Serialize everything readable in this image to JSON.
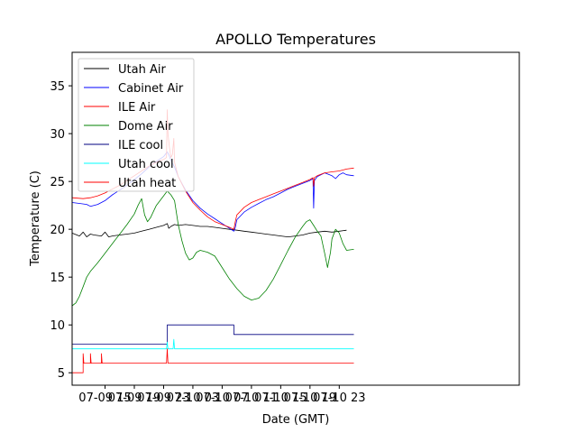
{
  "chart_data": {
    "type": "line",
    "title": "APOLLO Temperatures",
    "xlabel": "Date (GMT)",
    "ylabel": "Temperature (C)",
    "xlim": [
      10.5,
      71.6
    ],
    "ylim": [
      3.7,
      38.5
    ],
    "grid": false,
    "legend_position": "top-left",
    "x_unit_note": "hours since 07-09 00:00 GMT",
    "x_ticks": [
      {
        "value": 15,
        "label": "07-09 15"
      },
      {
        "value": 19,
        "label": "07-09 19"
      },
      {
        "value": 23,
        "label": "07-09 23"
      },
      {
        "value": 27,
        "label": "07-10 03"
      },
      {
        "value": 31,
        "label": "07-10 07"
      },
      {
        "value": 35,
        "label": "07-10 11"
      },
      {
        "value": 39,
        "label": "07-10 15"
      },
      {
        "value": 43,
        "label": "07-10 19"
      },
      {
        "value": 47,
        "label": "07-10 23"
      }
    ],
    "y_ticks": [
      {
        "value": 5,
        "label": "5"
      },
      {
        "value": 10,
        "label": "10"
      },
      {
        "value": 15,
        "label": "15"
      },
      {
        "value": 20,
        "label": "20"
      },
      {
        "value": 25,
        "label": "25"
      },
      {
        "value": 30,
        "label": "30"
      },
      {
        "value": 35,
        "label": "35"
      }
    ],
    "series": [
      {
        "name": "Utah Air",
        "color": "#000000",
        "points": [
          [
            10.5,
            19.6
          ],
          [
            11.5,
            19.3
          ],
          [
            12,
            19.7
          ],
          [
            12.5,
            19.2
          ],
          [
            13,
            19.5
          ],
          [
            13.5,
            19.4
          ],
          [
            14.5,
            19.3
          ],
          [
            15,
            19.7
          ],
          [
            15.5,
            19.2
          ],
          [
            16,
            19.3
          ],
          [
            17,
            19.4
          ],
          [
            18,
            19.5
          ],
          [
            19,
            19.6
          ],
          [
            20,
            19.8
          ],
          [
            21,
            20
          ],
          [
            22,
            20.2
          ],
          [
            23,
            20.4
          ],
          [
            23.5,
            20.6
          ],
          [
            23.7,
            20.1
          ],
          [
            24,
            20.3
          ],
          [
            24.5,
            20.5
          ],
          [
            25,
            20.4
          ],
          [
            26,
            20.5
          ],
          [
            27,
            20.4
          ],
          [
            28,
            20.3
          ],
          [
            29,
            20.3
          ],
          [
            30,
            20.2
          ],
          [
            31,
            20.1
          ],
          [
            32,
            20
          ],
          [
            33,
            19.9
          ],
          [
            34,
            19.8
          ],
          [
            35,
            19.7
          ],
          [
            36,
            19.6
          ],
          [
            37,
            19.5
          ],
          [
            38,
            19.4
          ],
          [
            39,
            19.3
          ],
          [
            40,
            19.2
          ],
          [
            41,
            19.3
          ],
          [
            42,
            19.4
          ],
          [
            43,
            19.6
          ],
          [
            44,
            19.7
          ],
          [
            45,
            19.8
          ],
          [
            46,
            19.7
          ],
          [
            47,
            19.8
          ],
          [
            48,
            19.9
          ]
        ]
      },
      {
        "name": "Cabinet Air",
        "color": "#0000ff",
        "points": [
          [
            10.5,
            22.8
          ],
          [
            11.5,
            22.7
          ],
          [
            12.5,
            22.6
          ],
          [
            13,
            22.4
          ],
          [
            14,
            22.6
          ],
          [
            15,
            23
          ],
          [
            16,
            23.6
          ],
          [
            17,
            24.1
          ],
          [
            18,
            24.6
          ],
          [
            19,
            25.2
          ],
          [
            20,
            25.8
          ],
          [
            21,
            26.5
          ],
          [
            22,
            27.1
          ],
          [
            23,
            27.6
          ],
          [
            23.5,
            28.1
          ],
          [
            23.7,
            27.8
          ],
          [
            24,
            27.2
          ],
          [
            24.5,
            26.5
          ],
          [
            25,
            25.5
          ],
          [
            26,
            24.1
          ],
          [
            27,
            23
          ],
          [
            28,
            22.2
          ],
          [
            29,
            21.6
          ],
          [
            30,
            21.1
          ],
          [
            31,
            20.6
          ],
          [
            32,
            20.1
          ],
          [
            32.6,
            19.8
          ],
          [
            32.8,
            20.2
          ],
          [
            33,
            21
          ],
          [
            34,
            21.8
          ],
          [
            35,
            22.3
          ],
          [
            36,
            22.7
          ],
          [
            37,
            23.1
          ],
          [
            38,
            23.4
          ],
          [
            39,
            23.8
          ],
          [
            40,
            24.2
          ],
          [
            41,
            24.5
          ],
          [
            42,
            24.8
          ],
          [
            43,
            25.1
          ],
          [
            43.4,
            25.3
          ],
          [
            43.5,
            22.2
          ],
          [
            43.6,
            25.1
          ],
          [
            44,
            25.5
          ],
          [
            45,
            25.9
          ],
          [
            46,
            25.6
          ],
          [
            46.5,
            25.3
          ],
          [
            47,
            25.7
          ],
          [
            47.5,
            25.9
          ],
          [
            48,
            25.7
          ],
          [
            49,
            25.6
          ]
        ]
      },
      {
        "name": "ILE Air",
        "color": "#ff0000",
        "points": [
          [
            10.5,
            23.3
          ],
          [
            12,
            23.2
          ],
          [
            13,
            23.3
          ],
          [
            14,
            23.5
          ],
          [
            15,
            23.8
          ],
          [
            16,
            24.2
          ],
          [
            17,
            24.6
          ],
          [
            18,
            25.1
          ],
          [
            19,
            25.6
          ],
          [
            20,
            26.1
          ],
          [
            21,
            26.6
          ],
          [
            22,
            27
          ],
          [
            23,
            27.3
          ],
          [
            23.4,
            27.5
          ],
          [
            23.5,
            32.5
          ],
          [
            23.6,
            30
          ],
          [
            23.8,
            28.5
          ],
          [
            24,
            27.5
          ],
          [
            24.2,
            27.8
          ],
          [
            24.4,
            29.5
          ],
          [
            24.5,
            27
          ],
          [
            25,
            25.5
          ],
          [
            26,
            24
          ],
          [
            27,
            22.8
          ],
          [
            28,
            22
          ],
          [
            29,
            21.3
          ],
          [
            30,
            20.8
          ],
          [
            31,
            20.5
          ],
          [
            32,
            20.2
          ],
          [
            32.6,
            20
          ],
          [
            32.8,
            20.8
          ],
          [
            33,
            21.5
          ],
          [
            34,
            22.3
          ],
          [
            35,
            22.8
          ],
          [
            36,
            23.1
          ],
          [
            37,
            23.4
          ],
          [
            38,
            23.7
          ],
          [
            39,
            24
          ],
          [
            40,
            24.3
          ],
          [
            41,
            24.6
          ],
          [
            42,
            24.9
          ],
          [
            43,
            25.2
          ],
          [
            43.4,
            25.4
          ],
          [
            43.5,
            24.5
          ],
          [
            43.6,
            25.4
          ],
          [
            44,
            25.6
          ],
          [
            45,
            25.9
          ],
          [
            46,
            26
          ],
          [
            47,
            26.1
          ],
          [
            48,
            26.3
          ],
          [
            49,
            26.4
          ]
        ]
      },
      {
        "name": "Dome Air",
        "color": "#008000",
        "points": [
          [
            10.5,
            12
          ],
          [
            11,
            12.3
          ],
          [
            11.5,
            13
          ],
          [
            12,
            14
          ],
          [
            12.5,
            15
          ],
          [
            13,
            15.6
          ],
          [
            14,
            16.5
          ],
          [
            15,
            17.5
          ],
          [
            16,
            18.5
          ],
          [
            17,
            19.5
          ],
          [
            18,
            20.5
          ],
          [
            19,
            21.6
          ],
          [
            19.5,
            22.5
          ],
          [
            20,
            23.2
          ],
          [
            20.4,
            21.5
          ],
          [
            20.8,
            20.8
          ],
          [
            21.2,
            21.2
          ],
          [
            22,
            22.5
          ],
          [
            23,
            23.5
          ],
          [
            23.5,
            24
          ],
          [
            24,
            23.6
          ],
          [
            24.5,
            23
          ],
          [
            25,
            20.5
          ],
          [
            25.5,
            18.8
          ],
          [
            26,
            17.5
          ],
          [
            26.5,
            16.8
          ],
          [
            27,
            17
          ],
          [
            27.5,
            17.6
          ],
          [
            28,
            17.8
          ],
          [
            29,
            17.6
          ],
          [
            30,
            17.2
          ],
          [
            31,
            16
          ],
          [
            32,
            14.8
          ],
          [
            33,
            13.8
          ],
          [
            34,
            13
          ],
          [
            35,
            12.6
          ],
          [
            36,
            12.8
          ],
          [
            37,
            13.6
          ],
          [
            38,
            14.8
          ],
          [
            39,
            16.3
          ],
          [
            40,
            17.8
          ],
          [
            41,
            19.2
          ],
          [
            42,
            20.3
          ],
          [
            42.5,
            20.8
          ],
          [
            43,
            21
          ],
          [
            43.5,
            20.4
          ],
          [
            44,
            19.8
          ],
          [
            44.5,
            19.3
          ],
          [
            45,
            17.5
          ],
          [
            45.4,
            16
          ],
          [
            45.8,
            17.6
          ],
          [
            46,
            19
          ],
          [
            46.5,
            20
          ],
          [
            47,
            19.6
          ],
          [
            47.5,
            18.5
          ],
          [
            48,
            17.8
          ],
          [
            49,
            17.9
          ]
        ]
      },
      {
        "name": "ILE cool",
        "color": "#000080",
        "points": [
          [
            10.5,
            8
          ],
          [
            23.5,
            8
          ],
          [
            23.5,
            10
          ],
          [
            32.6,
            10
          ],
          [
            32.6,
            9
          ],
          [
            49,
            9
          ]
        ]
      },
      {
        "name": "Utah cool",
        "color": "#00ffff",
        "points": [
          [
            10.5,
            7.5
          ],
          [
            23.4,
            7.5
          ],
          [
            23.5,
            8.2
          ],
          [
            23.6,
            7.5
          ],
          [
            24.3,
            7.5
          ],
          [
            24.4,
            8.5
          ],
          [
            24.5,
            7.5
          ],
          [
            49,
            7.5
          ]
        ]
      },
      {
        "name": "Utah heat",
        "color": "#ff0000",
        "points": [
          [
            10.5,
            5
          ],
          [
            12,
            5
          ],
          [
            12,
            7
          ],
          [
            12.1,
            6
          ],
          [
            13,
            6
          ],
          [
            13,
            7
          ],
          [
            13.1,
            6
          ],
          [
            14.5,
            6
          ],
          [
            14.5,
            7
          ],
          [
            14.6,
            6
          ],
          [
            23.4,
            6
          ],
          [
            23.5,
            7.5
          ],
          [
            23.6,
            6
          ],
          [
            49,
            6
          ]
        ]
      }
    ]
  }
}
